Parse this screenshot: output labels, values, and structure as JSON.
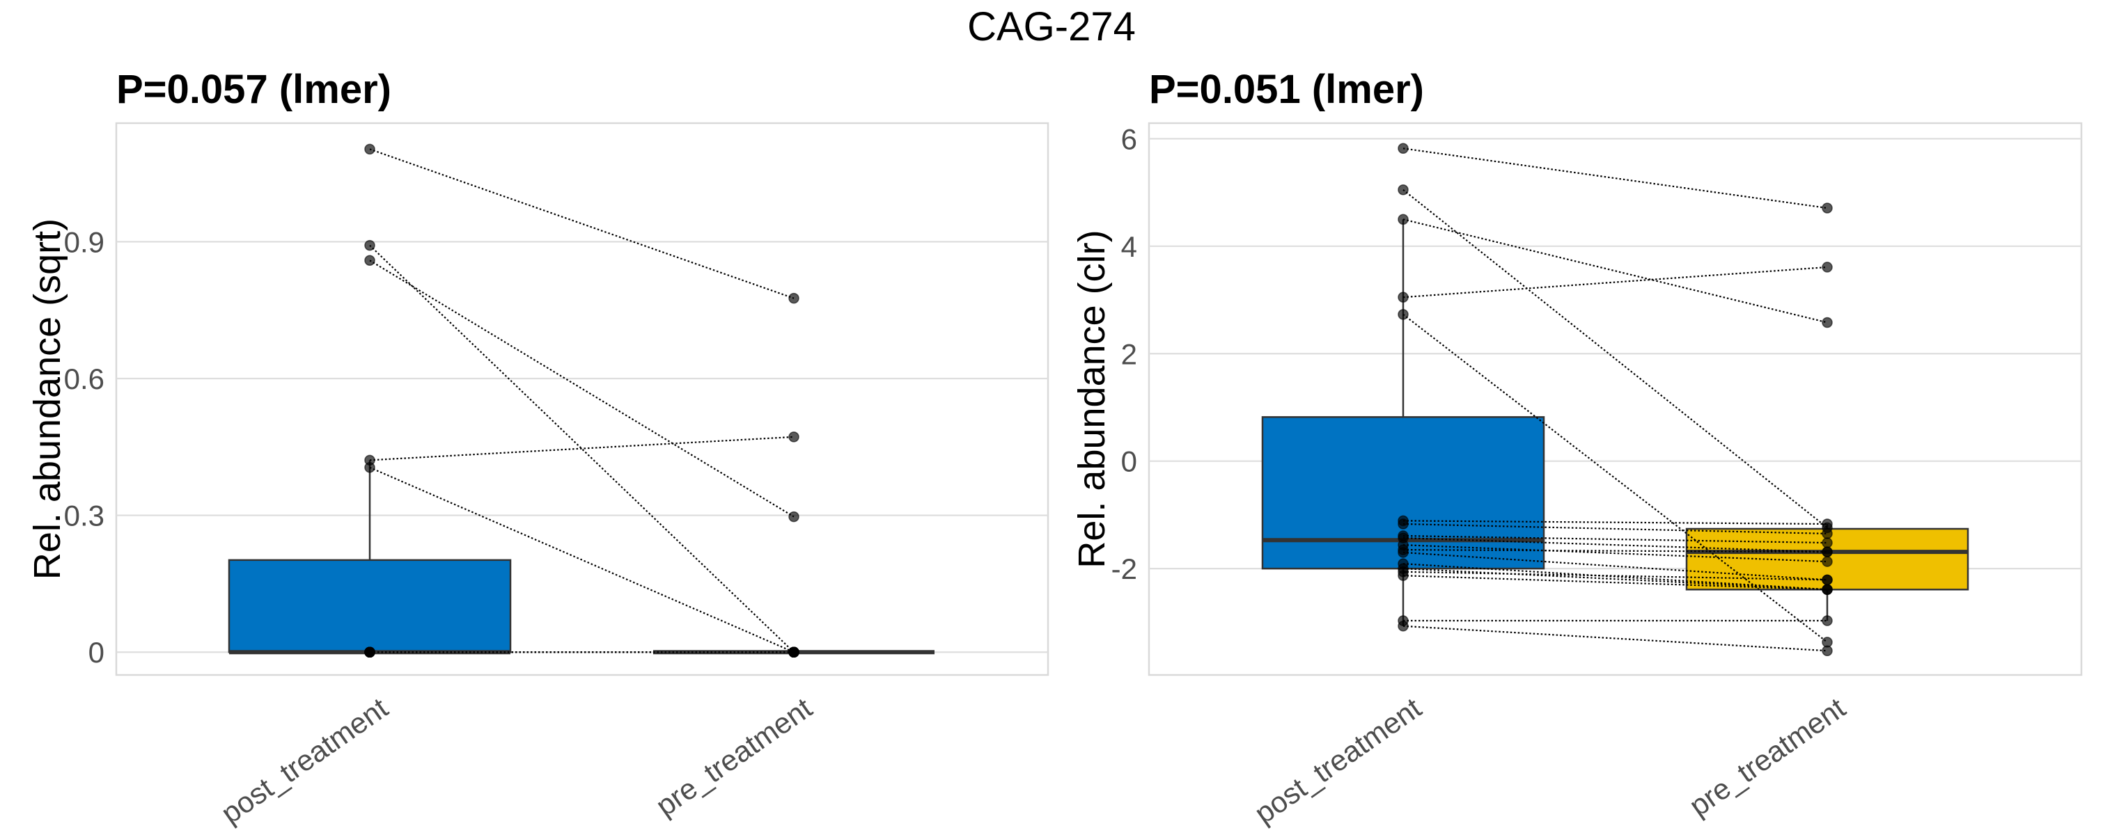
{
  "chart_data": {
    "title": "CAG-274",
    "panels": [
      {
        "type": "box",
        "subtitle": "P=0.057 (lmer)",
        "xlabel": "",
        "ylabel": "Rel. abundance (sqrt)",
        "categories": [
          "post_treatment",
          "pre_treatment"
        ],
        "ylim": [
          -0.05,
          1.16
        ],
        "yticks": [
          0,
          0.3,
          0.6,
          0.9
        ],
        "ytick_labels": [
          "0",
          "0.3",
          "0.6",
          "0.9"
        ],
        "grid": true,
        "boxes": [
          {
            "category": "post_treatment",
            "color": "#0073C2",
            "q1": 0,
            "median": 0,
            "q3": 0.202,
            "whisker_low": 0,
            "whisker_high": 0.421
          },
          {
            "category": "pre_treatment",
            "color": "#EFC000",
            "q1": 0,
            "median": 0,
            "q3": 0,
            "whisker_low": 0,
            "whisker_high": 0
          }
        ],
        "pairs": [
          [
            1.103,
            0.776
          ],
          [
            0.892,
            0
          ],
          [
            0.859,
            0.297
          ],
          [
            0.421,
            0.472
          ],
          [
            0.405,
            0
          ],
          [
            0,
            0
          ],
          [
            0,
            0
          ],
          [
            0,
            0
          ],
          [
            0,
            0
          ],
          [
            0,
            0
          ],
          [
            0,
            0
          ],
          [
            0,
            0
          ],
          [
            0,
            0
          ],
          [
            0,
            0
          ],
          [
            0,
            0
          ],
          [
            0,
            0
          ],
          [
            0,
            0
          ]
        ]
      },
      {
        "type": "box",
        "subtitle": "P=0.051 (lmer)",
        "xlabel": "",
        "ylabel": "Rel. abundance (clr)",
        "categories": [
          "post_treatment",
          "pre_treatment"
        ],
        "ylim": [
          -3.98,
          6.29
        ],
        "yticks": [
          -2,
          0,
          2,
          4,
          6
        ],
        "ytick_labels": [
          "-2",
          "0",
          "2",
          "4",
          "6"
        ],
        "grid": true,
        "boxes": [
          {
            "category": "post_treatment",
            "color": "#0073C2",
            "q1": -2.0,
            "median": -1.47,
            "q3": 0.82,
            "whisker_low": -3.07,
            "whisker_high": 4.5
          },
          {
            "category": "pre_treatment",
            "color": "#EFC000",
            "q1": -2.39,
            "median": -1.69,
            "q3": -1.26,
            "whisker_low": -2.97,
            "whisker_high": -1.17
          }
        ],
        "pairs": [
          [
            5.82,
            4.71
          ],
          [
            5.05,
            -1.24
          ],
          [
            4.5,
            2.58
          ],
          [
            3.05,
            3.61
          ],
          [
            2.73,
            -3.37
          ],
          [
            -1.11,
            -1.17
          ],
          [
            -1.17,
            -1.35
          ],
          [
            -1.39,
            -1.52
          ],
          [
            -1.43,
            -1.69
          ],
          [
            -1.56,
            -1.87
          ],
          [
            -1.65,
            -1.69
          ],
          [
            -1.7,
            -2.21
          ],
          [
            -1.91,
            -2.39
          ],
          [
            -2.0,
            -2.39
          ],
          [
            -2.06,
            -2.21
          ],
          [
            -2.13,
            -2.39
          ],
          [
            -2.97,
            -2.97
          ],
          [
            -3.07,
            -3.53
          ]
        ]
      }
    ]
  }
}
